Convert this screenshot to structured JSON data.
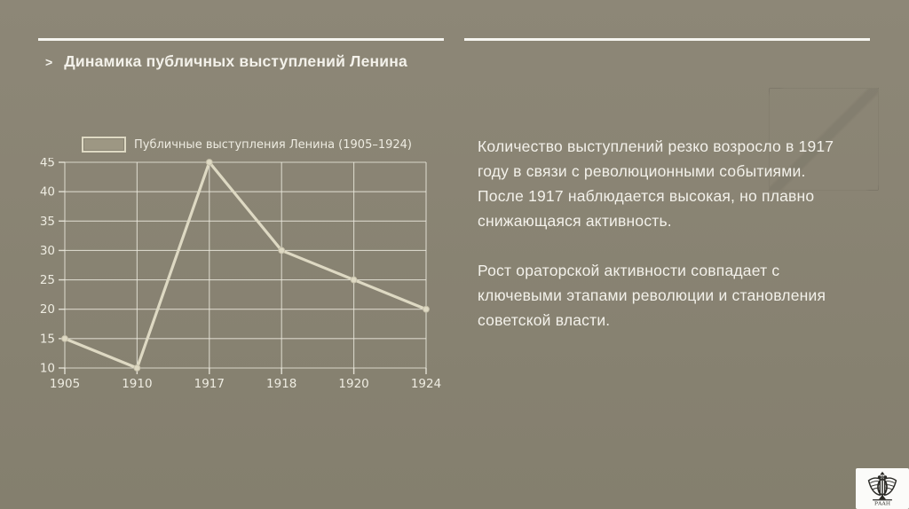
{
  "header": {
    "marker": ">",
    "title": "Динамика публичных выступлений Ленина"
  },
  "chart_data": {
    "type": "line",
    "legend": "Публичные выступления Ленина (1905–1924)",
    "legend_position": "top",
    "categories": [
      "1905",
      "1910",
      "1917",
      "1918",
      "1920",
      "1924"
    ],
    "values": [
      15,
      10,
      45,
      30,
      25,
      20
    ],
    "yticks": [
      10,
      15,
      20,
      25,
      30,
      35,
      40,
      45
    ],
    "ylim": [
      10,
      45
    ],
    "grid": true,
    "title": "",
    "xlabel": "",
    "ylabel": ""
  },
  "body": {
    "paragraph1": "Количество выступлений резко возросло в 1917 году в связи с революционными событиями. После 1917 наблюдается высокая, но плавно снижающаяся активность.",
    "paragraph2": "Рост ораторской активности совпадает с ключевыми этапами революции и становления советской власти."
  },
  "logo": {
    "caption": "РААН"
  },
  "colors": {
    "background_top": "#8d8777",
    "background_bottom": "#847f6e",
    "rule": "#f6f5f0",
    "text": "#f3f1ea",
    "chart_text": "#eeece1",
    "chart_line": "#ded9c3",
    "chart_grid": "#eceade",
    "legend_swatch_fill": "#9d9783",
    "logo_background": "#fbfbf9",
    "emblem": "#2b2a26"
  }
}
